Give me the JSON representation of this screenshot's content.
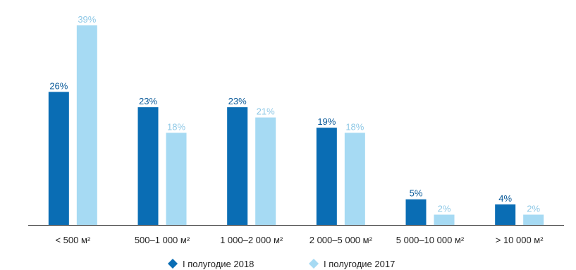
{
  "chart_data": {
    "type": "bar",
    "categories": [
      "< 500 м²",
      "500–1 000 м²",
      "1 000–2 000 м²",
      "2 000–5 000 м²",
      "5 000–10 000 м²",
      "> 10 000 м²"
    ],
    "series": [
      {
        "name": "I полугодие 2018",
        "values": [
          26,
          23,
          23,
          19,
          5,
          4
        ],
        "labels": [
          "26%",
          "23%",
          "23%",
          "19%",
          "5%",
          "4%"
        ],
        "color": "#0a6db4"
      },
      {
        "name": "I полугодие 2017",
        "values": [
          39,
          18,
          21,
          18,
          2,
          2
        ],
        "labels": [
          "39%",
          "18%",
          "21%",
          "18%",
          "2%",
          "2%"
        ],
        "color": "#a6daf3"
      }
    ],
    "ylim": [
      0,
      39
    ],
    "grid": false,
    "legend_position": "bottom-center",
    "title": "",
    "xlabel": "",
    "ylabel": ""
  },
  "legend_icon": "diamond-icon"
}
